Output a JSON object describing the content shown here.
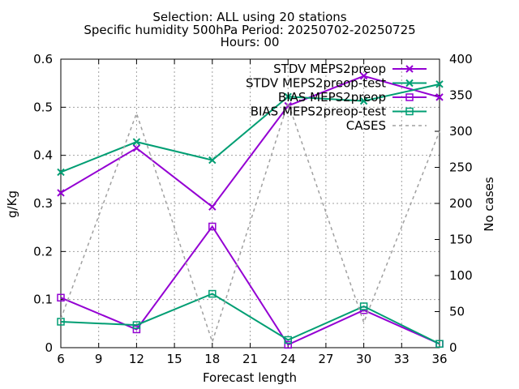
{
  "chart_data": {
    "type": "line",
    "title_lines": [
      "Selection: ALL using    20 stations",
      "Specific humidity 500hPa   Period: 20250702-20250725",
      "Hours: 00"
    ],
    "xlabel": "Forecast length",
    "ylabel": "g/Kg",
    "y2label": "No cases",
    "x_ticks": [
      6,
      9,
      12,
      15,
      18,
      21,
      24,
      27,
      30,
      33,
      36
    ],
    "xlim": [
      6,
      36
    ],
    "y_ticks": [
      0,
      0.1,
      0.2,
      0.3,
      0.4,
      0.5,
      0.6
    ],
    "y_tick_labels": [
      "0",
      "0.1",
      "0.2",
      "0.3",
      "0.4",
      "0.5",
      "0.6"
    ],
    "ylim": [
      0,
      0.6
    ],
    "y2_ticks": [
      0,
      50,
      100,
      150,
      200,
      250,
      300,
      350,
      400
    ],
    "y2lim": [
      0,
      400
    ],
    "grid": true,
    "legend_position": "top-right",
    "x": [
      6,
      12,
      18,
      24,
      30,
      36
    ],
    "series": [
      {
        "name": "STDV MEPS2preop",
        "axis": "y1",
        "color": "#9400d3",
        "marker": "x",
        "values": [
          0.322,
          0.415,
          0.293,
          0.503,
          0.565,
          0.521
        ]
      },
      {
        "name": "STDV MEPS2preop-test",
        "axis": "y1",
        "color": "#009e73",
        "marker": "x",
        "values": [
          0.365,
          0.428,
          0.39,
          0.522,
          0.513,
          0.548
        ]
      },
      {
        "name": "BIAS MEPS2preop",
        "axis": "y1",
        "color": "#9400d3",
        "marker": "square",
        "values": [
          0.104,
          0.038,
          0.252,
          0.006,
          0.078,
          0.008
        ]
      },
      {
        "name": "BIAS MEPS2preop-test",
        "axis": "y1",
        "color": "#009e73",
        "marker": "square",
        "values": [
          0.054,
          0.047,
          0.112,
          0.016,
          0.086,
          0.008
        ]
      },
      {
        "name": "CASES",
        "axis": "y2",
        "color": "#a0a0a0",
        "marker": "none",
        "dashed": true,
        "values": [
          40,
          325,
          8,
          340,
          35,
          300
        ]
      }
    ]
  }
}
